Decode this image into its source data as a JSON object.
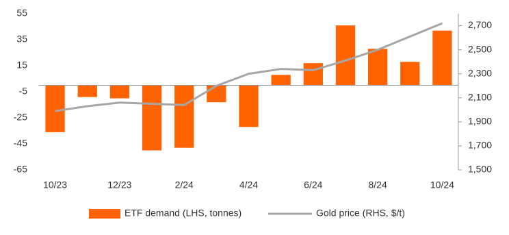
{
  "chart_data": {
    "type": "bar_line",
    "categories": [
      "10/23",
      null,
      "12/23",
      null,
      "2/24",
      null,
      "4/24",
      null,
      "6/24",
      null,
      "8/24",
      null,
      "10/24"
    ],
    "series": [
      {
        "name": "ETF demand (LHS, tonnes)",
        "type": "bar",
        "color": "#ff6200",
        "values": [
          -36,
          -9,
          -10,
          -50,
          -48,
          -13,
          -32,
          8,
          17,
          46,
          28,
          18,
          42
        ]
      },
      {
        "name": "Gold price (RHS, $/t)",
        "type": "line",
        "axis": "y2",
        "color": "#a6a6a6",
        "values": [
          1990,
          2030,
          2060,
          2050,
          2040,
          2200,
          2300,
          2340,
          2330,
          2410,
          2500,
          2610,
          2720
        ]
      }
    ],
    "ylim": [
      -65,
      55
    ],
    "yticks": [
      -65,
      -45,
      -25,
      -5,
      15,
      35,
      55
    ],
    "y2lim": [
      1500,
      2800
    ],
    "y2ticks": [
      {
        "value": 1500,
        "label": "1,500"
      },
      {
        "value": 1700,
        "label": "1,700"
      },
      {
        "value": 1900,
        "label": "1,900"
      },
      {
        "value": 2100,
        "label": "2,100"
      },
      {
        "value": 2300,
        "label": "2,300"
      },
      {
        "value": 2500,
        "label": "2,500"
      },
      {
        "value": 2700,
        "label": "2,700"
      }
    ]
  }
}
